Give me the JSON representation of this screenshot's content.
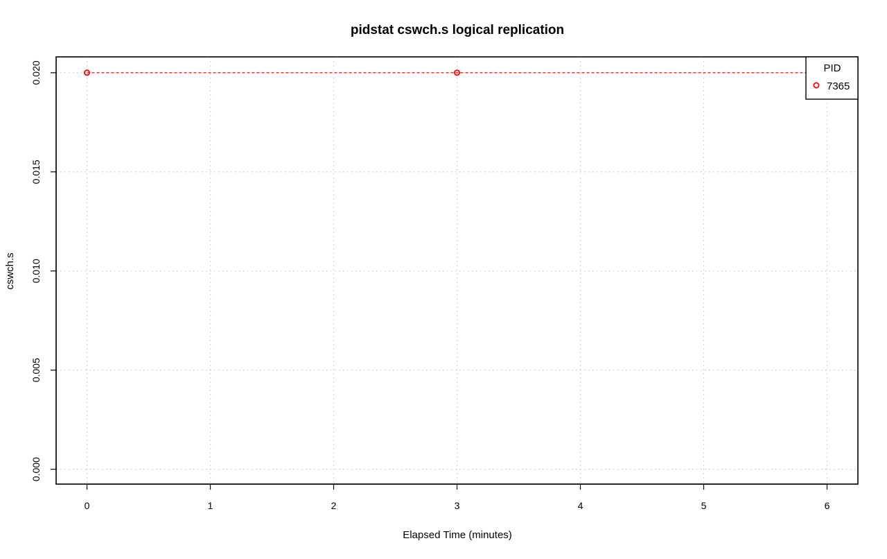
{
  "chart_data": {
    "type": "line",
    "title": "pidstat cswch.s logical replication",
    "xlabel": "Elapsed Time (minutes)",
    "ylabel": "cswch.s",
    "xlim": [
      -0.25,
      6.25
    ],
    "ylim": [
      -0.00075,
      0.0208
    ],
    "x_ticks": [
      0,
      1,
      2,
      3,
      4,
      5,
      6
    ],
    "x_tick_labels": [
      "0",
      "1",
      "2",
      "3",
      "4",
      "5",
      "6"
    ],
    "y_ticks": [
      0.0,
      0.005,
      0.01,
      0.015,
      0.02
    ],
    "y_tick_labels": [
      "0.000",
      "0.005",
      "0.010",
      "0.015",
      "0.020"
    ],
    "grid": true,
    "legend": {
      "title": "PID",
      "position": "top-right"
    },
    "series": [
      {
        "name": "7365",
        "color": "#ff0000",
        "line_style": "dashed",
        "marker": "open-circle",
        "x": [
          0,
          3,
          6
        ],
        "y": [
          0.02,
          0.02,
          0.02
        ]
      }
    ]
  }
}
